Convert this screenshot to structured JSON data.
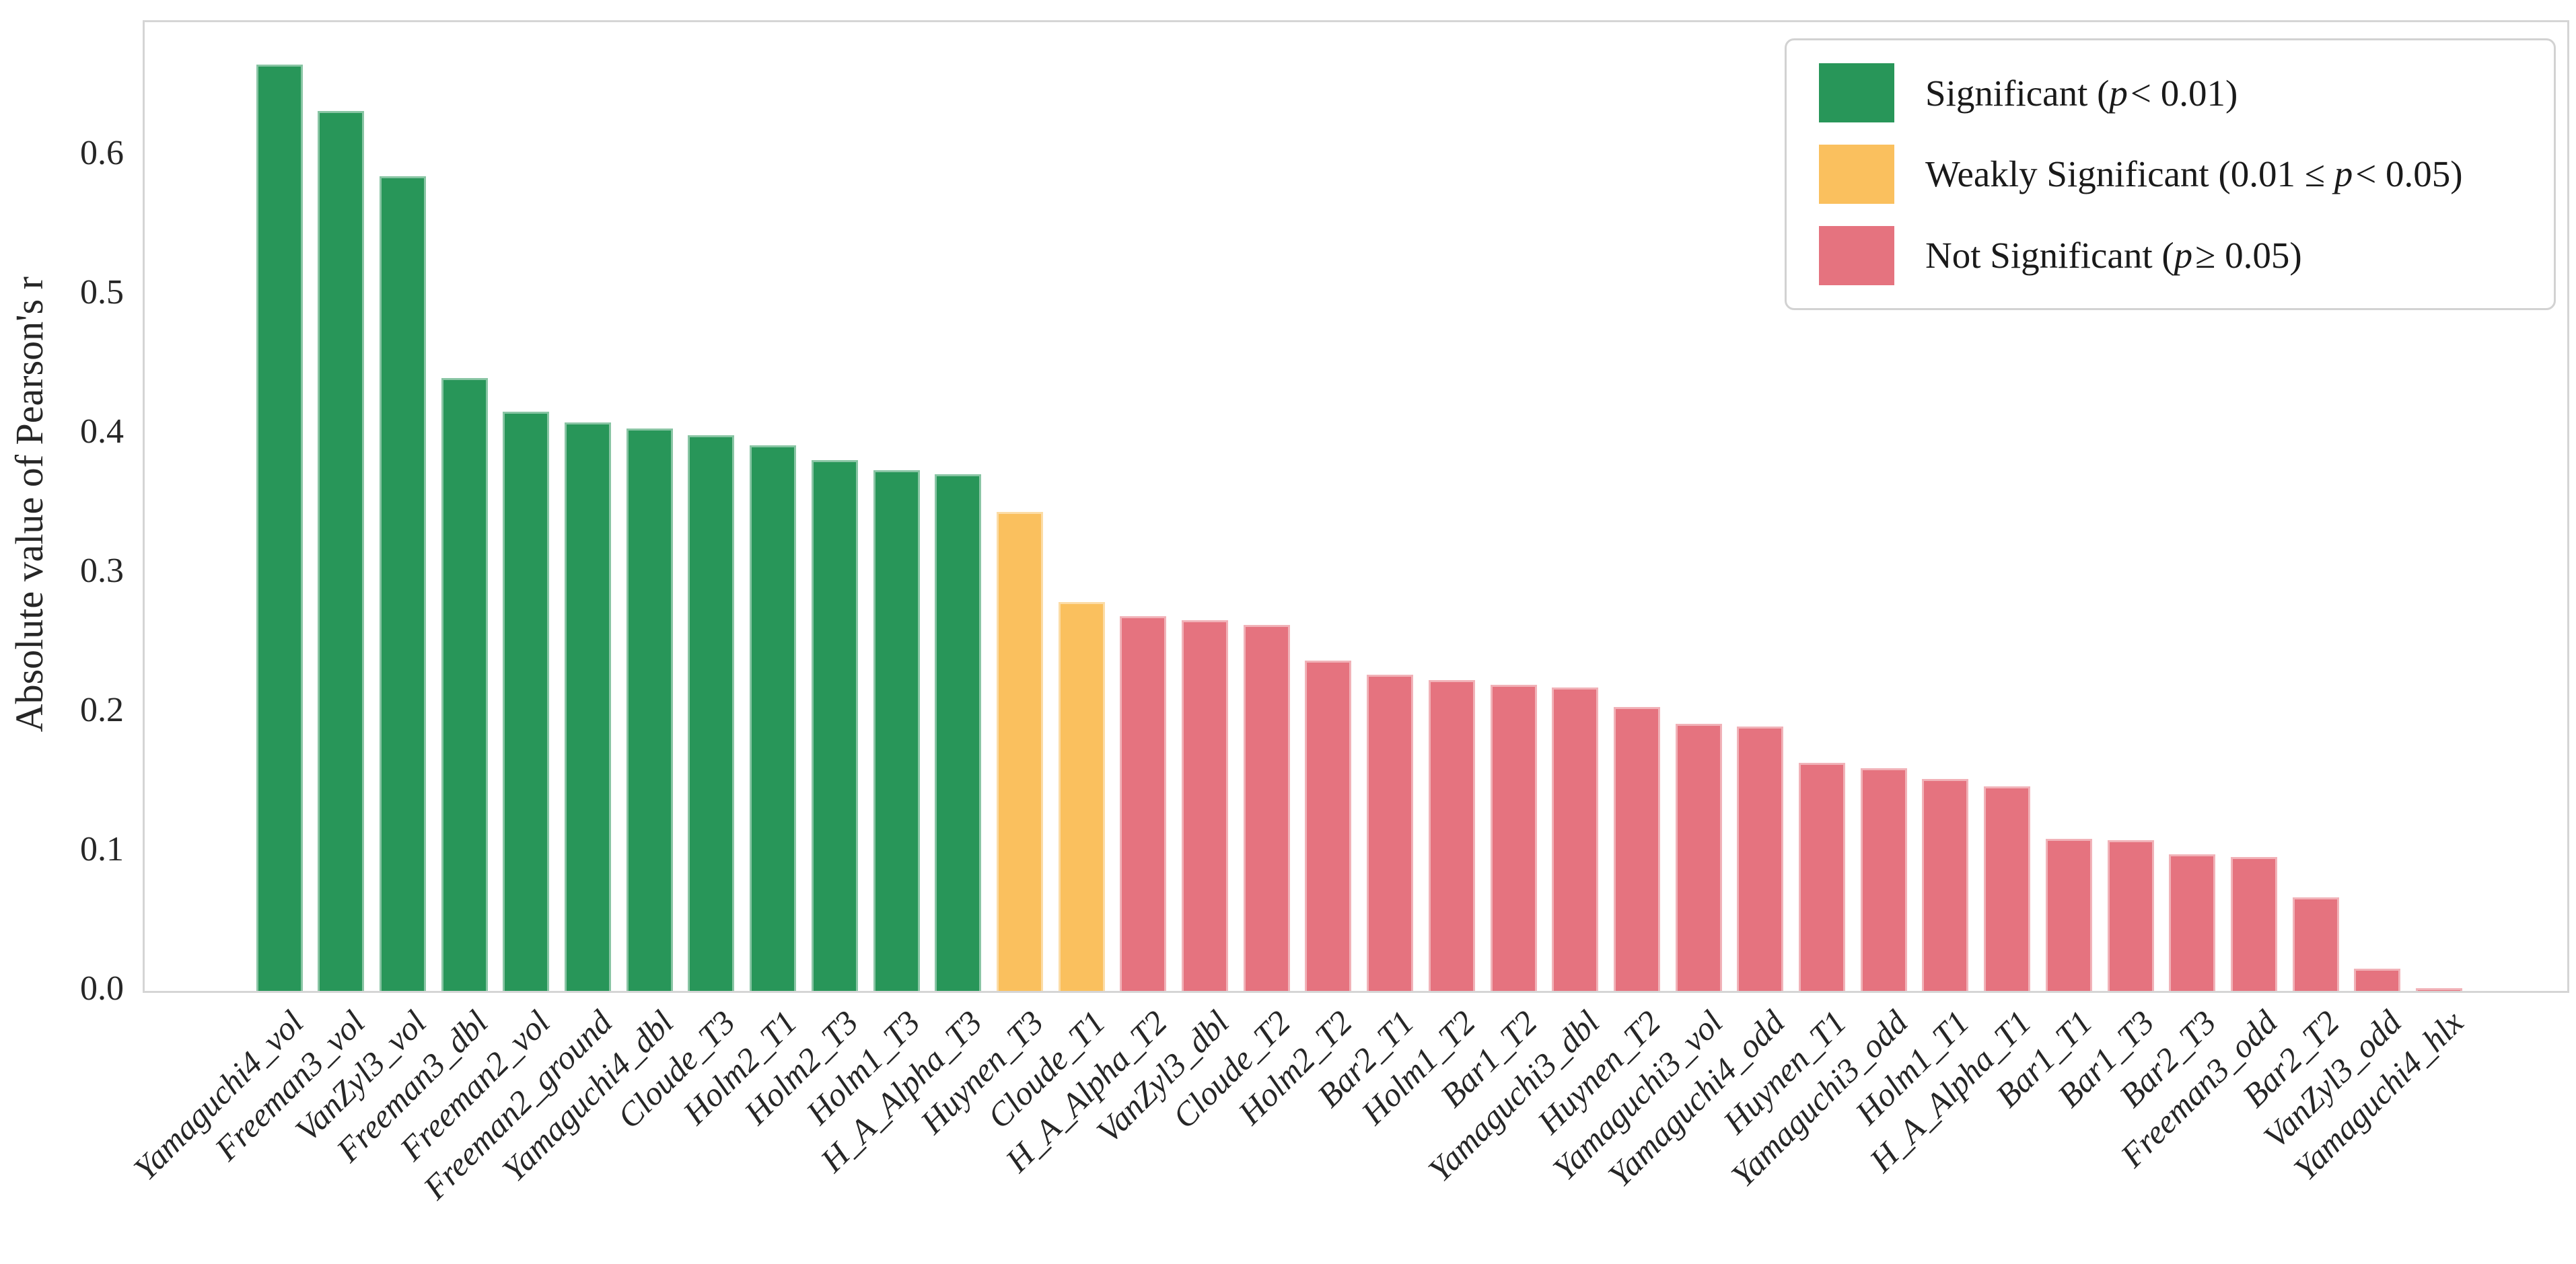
{
  "chart_data": {
    "type": "bar",
    "title": "",
    "xlabel": "",
    "ylabel": "Absolute value of Pearson's r",
    "ylim": [
      0,
      0.696
    ],
    "yticks": [
      "0.0",
      "0.1",
      "0.2",
      "0.3",
      "0.4",
      "0.5",
      "0.6"
    ],
    "grid": false,
    "legend_position": "upper right",
    "categories": [
      "Yamaguchi4_vol",
      "Freeman3_vol",
      "VanZyl3_vol",
      "Freeman3_dbl",
      "Freeman2_vol",
      "Freeman2_ground",
      "Yamaguchi4_dbl",
      "Cloude_T3",
      "Holm2_T1",
      "Holm2_T3",
      "Holm1_T3",
      "H_A_Alpha_T3",
      "Huynen_T3",
      "Cloude_T1",
      "H_A_Alpha_T2",
      "VanZyl3_dbl",
      "Cloude_T2",
      "Holm2_T2",
      "Bar2_T1",
      "Holm1_T2",
      "Bar1_T2",
      "Yamaguchi3_dbl",
      "Huynen_T2",
      "Yamaguchi3_vol",
      "Yamaguchi4_odd",
      "Huynen_T1",
      "Yamaguchi3_odd",
      "Holm1_T1",
      "H_A_Alpha_T1",
      "Bar1_T1",
      "Bar1_T3",
      "Bar2_T3",
      "Freeman3_odd",
      "Bar2_T2",
      "VanZyl3_odd",
      "Yamaguchi4_hlx"
    ],
    "values": [
      0.665,
      0.632,
      0.585,
      0.44,
      0.416,
      0.408,
      0.404,
      0.399,
      0.392,
      0.381,
      0.374,
      0.371,
      0.344,
      0.279,
      0.269,
      0.266,
      0.263,
      0.237,
      0.227,
      0.223,
      0.22,
      0.218,
      0.204,
      0.192,
      0.19,
      0.164,
      0.16,
      0.152,
      0.147,
      0.109,
      0.108,
      0.098,
      0.096,
      0.067,
      0.016,
      0.002
    ],
    "significance": [
      "significant",
      "significant",
      "significant",
      "significant",
      "significant",
      "significant",
      "significant",
      "significant",
      "significant",
      "significant",
      "significant",
      "significant",
      "weak",
      "weak",
      "not",
      "not",
      "not",
      "not",
      "not",
      "not",
      "not",
      "not",
      "not",
      "not",
      "not",
      "not",
      "not",
      "not",
      "not",
      "not",
      "not",
      "not",
      "not",
      "not",
      "not",
      "not"
    ],
    "group_colors": {
      "significant": "#289659",
      "weak": "#FAC05E",
      "not": "#E5737F"
    },
    "legend": [
      {
        "pre": "Significant (",
        "p": "p",
        "post": "< 0.01)",
        "group": "significant"
      },
      {
        "pre": "Weakly Significant (0.01 ≤ ",
        "p": "p",
        "post": "< 0.05)",
        "group": "weak"
      },
      {
        "pre": "Not Significant (",
        "p": "p",
        "post": "≥ 0.05)",
        "group": "not"
      }
    ]
  }
}
